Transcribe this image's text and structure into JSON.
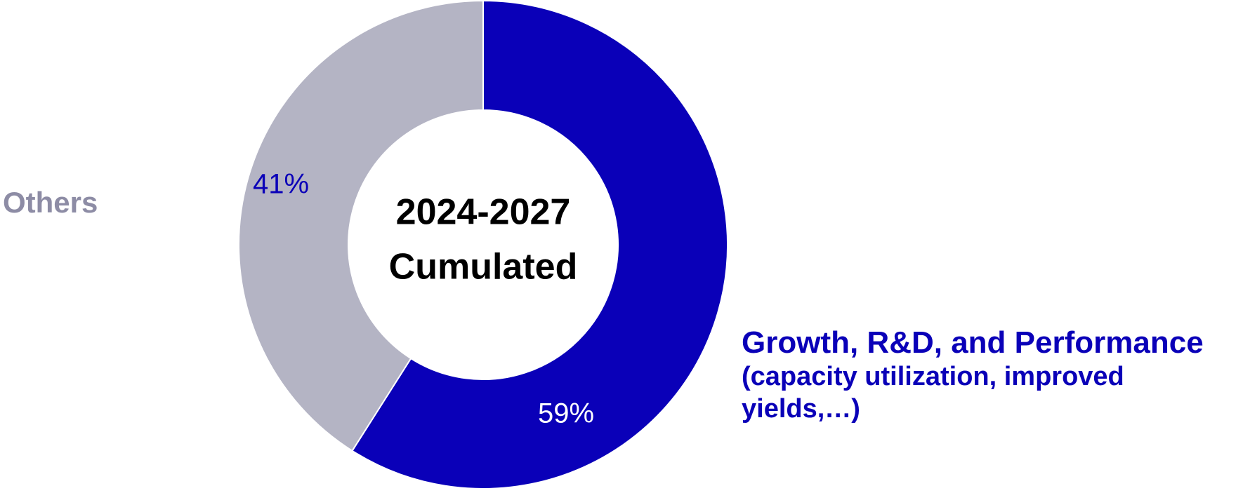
{
  "chart_data": {
    "type": "pie",
    "variant": "donut",
    "center_title": [
      "2024-2027",
      "Cumulated"
    ],
    "slices": [
      {
        "name": "Growth, R&D, and Performance",
        "description_lines": [
          "(capacity utilization, improved",
          "yields,…)"
        ],
        "value": 59,
        "value_label": "59%",
        "color": "#0a00b8",
        "value_label_color": "#ffffff"
      },
      {
        "name": "Others",
        "value": 41,
        "value_label": "41%",
        "color": "#b4b4c4",
        "value_label_color": "#0a00b8",
        "name_color": "#8d8ca5"
      }
    ]
  }
}
